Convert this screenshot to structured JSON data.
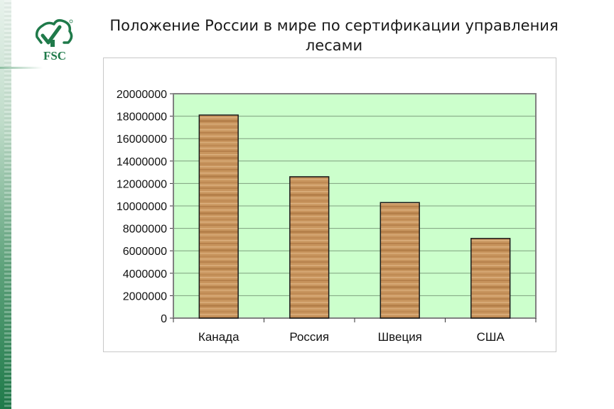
{
  "slide": {
    "title": "Положение России в мире по сертификации управления лесами",
    "logo_text": "FSC"
  },
  "colors": {
    "plot_background": "#ccffcc",
    "bar_fill": "#c8955e",
    "bar_outline": "#1a1a1a",
    "gridline": "#7f9f7f",
    "accent_green": "#1f7a4a"
  },
  "chart_data": {
    "type": "bar",
    "title": "",
    "xlabel": "",
    "ylabel": "",
    "categories": [
      "Канада",
      "Россия",
      "Швеция",
      "США"
    ],
    "values": [
      18100000,
      12600000,
      10300000,
      7100000
    ],
    "ylim": [
      0,
      20000000
    ],
    "yticks": [
      "0",
      "2000000",
      "4000000",
      "6000000",
      "8000000",
      "10000000",
      "12000000",
      "14000000",
      "16000000",
      "18000000",
      "20000000"
    ],
    "grid": true,
    "legend": "none"
  }
}
